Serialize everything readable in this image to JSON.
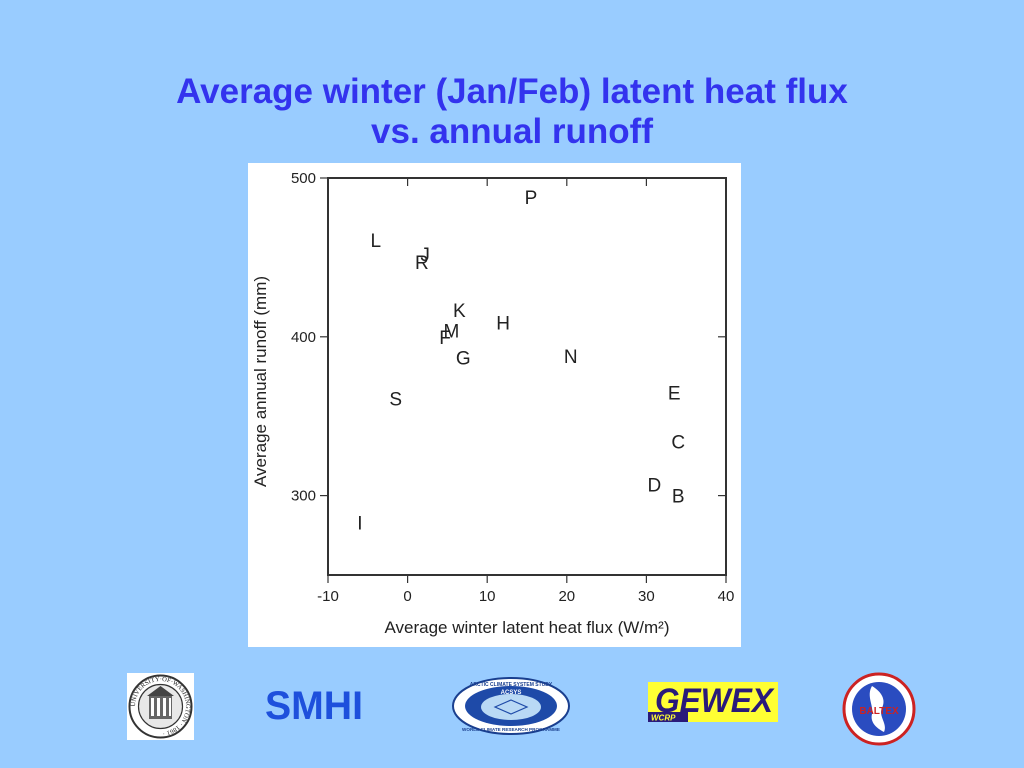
{
  "slide": {
    "title_line1": "Average winter (Jan/Feb) latent heat flux",
    "title_line2": "vs. annual runoff",
    "background_color": "#99ccff",
    "title_color": "#3333ee"
  },
  "chart_data": {
    "type": "scatter",
    "title": "",
    "xlabel": "Average winter latent heat flux (W/m²)",
    "ylabel": "Average annual runoff (mm)",
    "xlim": [
      -10,
      40
    ],
    "ylim": [
      250,
      500
    ],
    "x_ticks": [
      "-10",
      "0",
      "10",
      "20",
      "30",
      "40"
    ],
    "y_ticks": [
      "300",
      "400",
      "500"
    ],
    "grid": false,
    "points": [
      {
        "label": "P",
        "x": 15.5,
        "y": 488
      },
      {
        "label": "L",
        "x": -4,
        "y": 461
      },
      {
        "label": "J",
        "x": 2.2,
        "y": 452
      },
      {
        "label": "R",
        "x": 1.8,
        "y": 447
      },
      {
        "label": "K",
        "x": 6.5,
        "y": 417
      },
      {
        "label": "H",
        "x": 12,
        "y": 409
      },
      {
        "label": "M",
        "x": 5.5,
        "y": 404
      },
      {
        "label": "F",
        "x": 4.7,
        "y": 400
      },
      {
        "label": "G",
        "x": 7,
        "y": 387
      },
      {
        "label": "N",
        "x": 20.5,
        "y": 388
      },
      {
        "label": "E",
        "x": 33.5,
        "y": 365
      },
      {
        "label": "S",
        "x": -1.5,
        "y": 361
      },
      {
        "label": "C",
        "x": 34,
        "y": 334
      },
      {
        "label": "D",
        "x": 31,
        "y": 307
      },
      {
        "label": "B",
        "x": 34,
        "y": 300
      },
      {
        "label": "I",
        "x": -6,
        "y": 283
      }
    ]
  },
  "logos": [
    {
      "name": "university-of-washington-seal",
      "text": "UNIVERSITY·OF·WASHINGTON · 1861 ·"
    },
    {
      "name": "smhi-logo",
      "text": "SMHI",
      "color": "#1e50dc"
    },
    {
      "name": "acsys-logo",
      "text_top": "ARCTIC CLIMATE SYSTEM STUDY",
      "text_center": "ACSYS",
      "text_bottom": "WORLD CLIMATE RESEARCH PROGRAMME"
    },
    {
      "name": "gewex-logo",
      "text": "GEWEX",
      "subtext": "WCRP"
    },
    {
      "name": "baltex-logo",
      "text": "BALTEX"
    }
  ]
}
